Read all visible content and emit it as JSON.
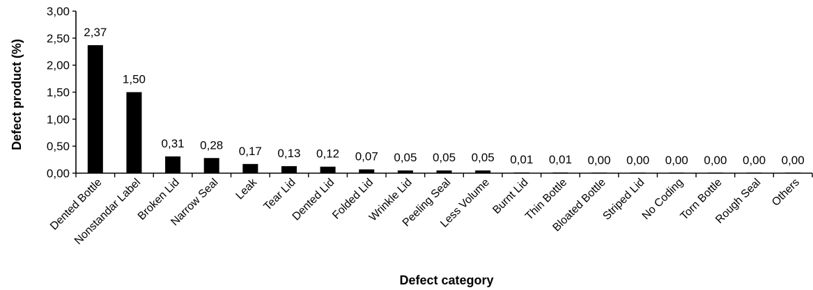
{
  "chart_data": {
    "type": "bar",
    "title": "",
    "xlabel": "Defect category",
    "ylabel": "Defect product  (%)",
    "ylim": [
      0,
      3
    ],
    "y_ticks": [
      "0,00",
      "0,50",
      "1,00",
      "1,50",
      "2,00",
      "2,50",
      "3,00"
    ],
    "y_tick_values": [
      0,
      0.5,
      1.0,
      1.5,
      2.0,
      2.5,
      3.0
    ],
    "categories": [
      "Dented Bottle",
      "Nonstandar Label",
      "Broken Lid",
      "Narrow Seal",
      "Leak",
      "Tear Lid",
      "Dented Lid",
      "Folded Lid",
      "Wrinkle Lid",
      "Peeling Seal",
      "Less Volume",
      "Burnt Lid",
      "Thin Bottle",
      "Bloated Bottle",
      "Striped Lid",
      "No Coding",
      "Torn Bottle",
      "Rough Seal",
      "Others"
    ],
    "values": [
      2.37,
      1.5,
      0.31,
      0.28,
      0.17,
      0.13,
      0.12,
      0.07,
      0.05,
      0.05,
      0.05,
      0.01,
      0.01,
      0.0,
      0.0,
      0.0,
      0.0,
      0.0,
      0.0
    ],
    "data_labels": [
      "2,37",
      "1,50",
      "0,31",
      "0,28",
      "0,17",
      "0,13",
      "0,12",
      "0,07",
      "0,05",
      "0,05",
      "0,05",
      "0,01",
      "0,01",
      "0,00",
      "0,00",
      "0,00",
      "0,00",
      "0,00",
      "0,00"
    ],
    "bar_color": "#000000",
    "grid": false,
    "legend": "none"
  }
}
